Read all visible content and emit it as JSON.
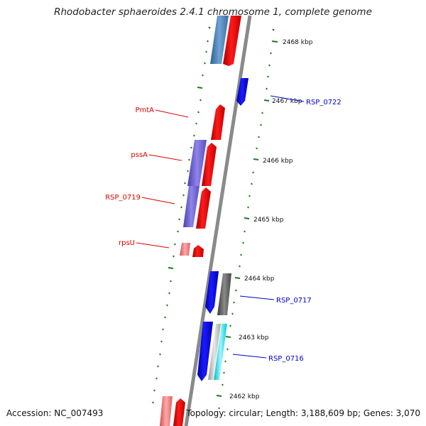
{
  "title": "Rhodobacter sphaeroides 2.4.1 chromosome 1, complete genome",
  "footer": {
    "accession": "Accession: NC_007493",
    "summary": "Topology: circular; Length: 3,188,609 bp; Genes: 3,070"
  },
  "colors": {
    "backbone": "#8a8a8a",
    "tick": "#1f7a1f",
    "forward_gene": "#ff0000",
    "reverse_gene": "#0000ee",
    "label_forward": "#dd0000",
    "label_reverse": "#0000cc"
  },
  "ticks": [
    "2468 kbp",
    "2467 kbp",
    "2466 kbp",
    "2465 kbp",
    "2464 kbp",
    "2463 kbp",
    "2462 kbp"
  ],
  "labels": {
    "pmta": "PmtA",
    "pssa": "pssA",
    "rsp0719": "RSP_0719",
    "rpsu": "rpsU",
    "rsp0722": "RSP_0722",
    "rsp0717": "RSP_0717",
    "rsp0716": "RSP_0716"
  }
}
